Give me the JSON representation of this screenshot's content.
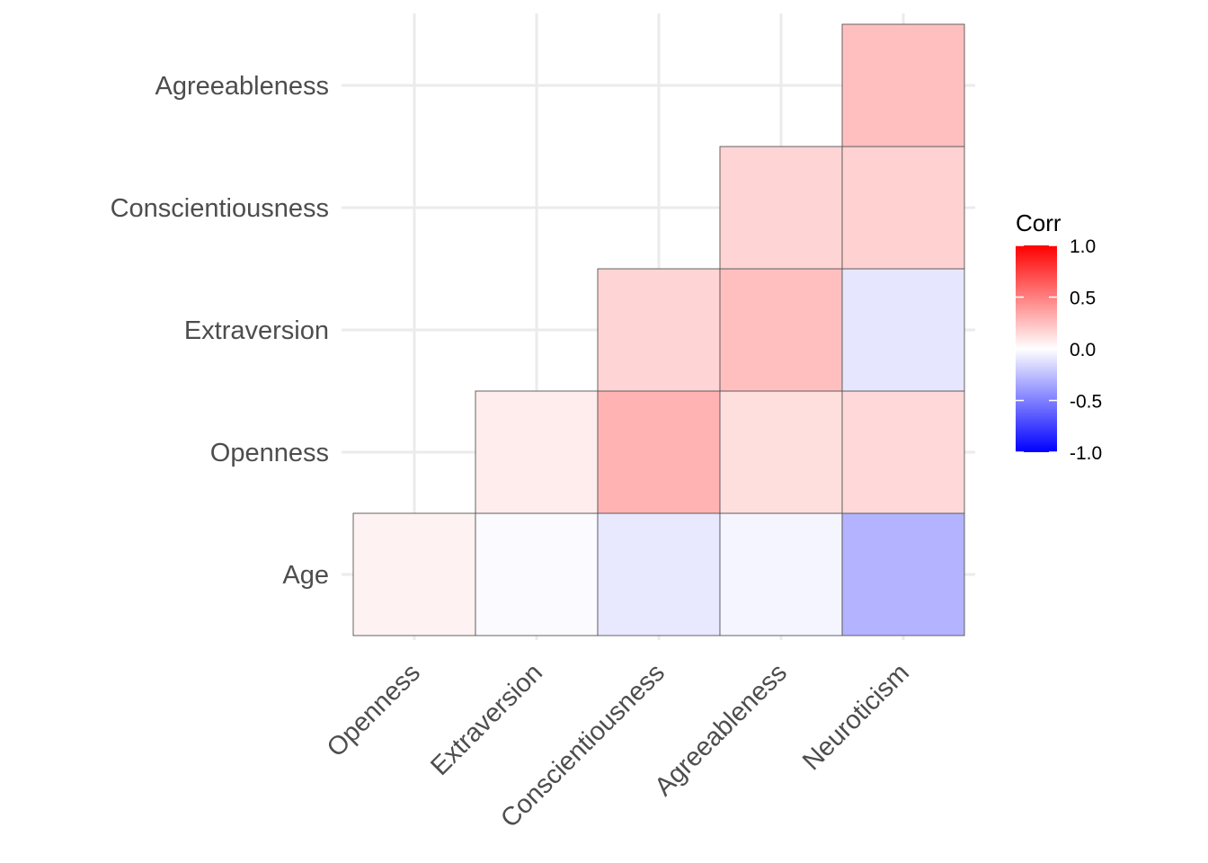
{
  "chart_data": {
    "type": "heatmap",
    "title": "",
    "xlabel": "",
    "ylabel": "",
    "x_categories": [
      "Openness",
      "Extraversion",
      "Conscientiousness",
      "Agreeableness",
      "Neuroticism"
    ],
    "y_categories": [
      "Age",
      "Openness",
      "Extraversion",
      "Conscientiousness",
      "Agreeableness"
    ],
    "cells": [
      {
        "x": "Openness",
        "y": "Age",
        "value": 0.05
      },
      {
        "x": "Extraversion",
        "y": "Age",
        "value": -0.02
      },
      {
        "x": "Conscientiousness",
        "y": "Age",
        "value": -0.09
      },
      {
        "x": "Agreeableness",
        "y": "Age",
        "value": -0.04
      },
      {
        "x": "Neuroticism",
        "y": "Age",
        "value": -0.3
      },
      {
        "x": "Extraversion",
        "y": "Openness",
        "value": 0.07
      },
      {
        "x": "Conscientiousness",
        "y": "Openness",
        "value": 0.3
      },
      {
        "x": "Agreeableness",
        "y": "Openness",
        "value": 0.13
      },
      {
        "x": "Neuroticism",
        "y": "Openness",
        "value": 0.15
      },
      {
        "x": "Conscientiousness",
        "y": "Extraversion",
        "value": 0.17
      },
      {
        "x": "Agreeableness",
        "y": "Extraversion",
        "value": 0.25
      },
      {
        "x": "Neuroticism",
        "y": "Extraversion",
        "value": -0.1
      },
      {
        "x": "Agreeableness",
        "y": "Conscientiousness",
        "value": 0.17
      },
      {
        "x": "Neuroticism",
        "y": "Conscientiousness",
        "value": 0.18
      },
      {
        "x": "Neuroticism",
        "y": "Agreeableness",
        "value": 0.25
      }
    ],
    "legend": {
      "title": "Corr",
      "placement": "right",
      "ticks": [
        1.0,
        0.5,
        0.0,
        -0.5,
        -1.0
      ],
      "tick_labels": [
        "1.0",
        "0.5",
        "0.0",
        "-0.5",
        "-1.0"
      ],
      "low_color": "#0000ff",
      "mid_color": "#ffffff",
      "high_color": "#ff0000",
      "limits": [
        -1,
        1
      ]
    },
    "grid": true,
    "grid_color": "#ebebeb",
    "tile_border_color": "#555555"
  }
}
